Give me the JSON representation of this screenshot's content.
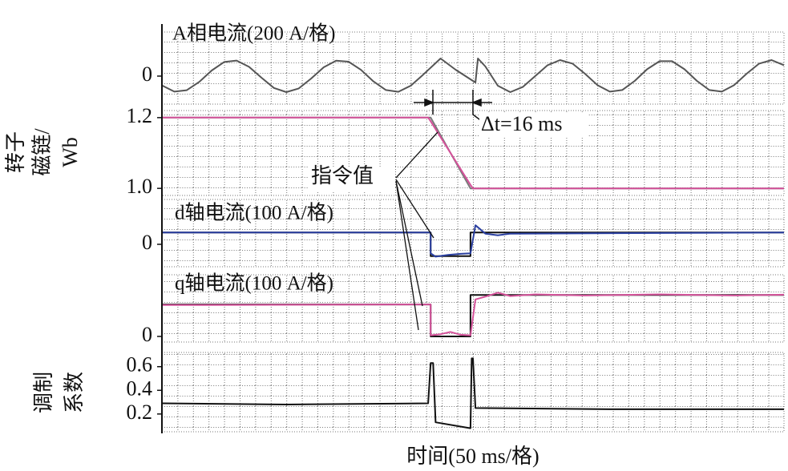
{
  "chart_data": [
    {
      "type": "line",
      "title": "A相电流(200 A/格)",
      "x": [
        0,
        5,
        10,
        15,
        20,
        25,
        30,
        35,
        40,
        45,
        50,
        55,
        60,
        65,
        70,
        75,
        80,
        85,
        90,
        95,
        100,
        105,
        112,
        118,
        126,
        127,
        130,
        135,
        140,
        145,
        150,
        155,
        160,
        165,
        170,
        175,
        180,
        185,
        190,
        195,
        200,
        205,
        210,
        215,
        220,
        225,
        230,
        235,
        240,
        245,
        250
      ],
      "series": [
        {
          "color": "#555555",
          "values": [
            -58,
            -97,
            -88,
            -36,
            35,
            88,
            97,
            58,
            -10,
            -74,
            -100,
            -77,
            -15,
            55,
            96,
            90,
            39,
            -33,
            -87,
            -98,
            -60,
            9,
            110,
            40,
            -40,
            110,
            60,
            -60,
            -100,
            -68,
            0,
            68,
            100,
            78,
            15,
            -56,
            -97,
            -87,
            -30,
            43,
            93,
            93,
            43,
            -30,
            -87,
            -97,
            -56,
            15,
            78,
            100,
            68
          ]
        }
      ],
      "xlim": [
        0,
        250
      ],
      "ylim": [
        -175,
        275
      ],
      "yticks": [
        0
      ],
      "grid": true
    },
    {
      "type": "line",
      "ylabel": [
        "转子",
        "磁链/",
        "Wb"
      ],
      "annotations": [
        "Δt=16 ms",
        "指令值"
      ],
      "x": [
        0,
        107,
        108,
        124,
        125,
        250
      ],
      "series": [
        {
          "color": "#7a7a7a",
          "values": [
            1.2,
            1.2,
            1.2,
            1.0,
            1.0,
            1.0
          ]
        },
        {
          "color": "#d4529a",
          "values": [
            1.2,
            1.2,
            1.19,
            1.01,
            1.0,
            1.0
          ]
        }
      ],
      "xlim": [
        0,
        250
      ],
      "ylim": [
        0.98,
        1.22
      ],
      "yticks": [
        {
          "value": 1.2,
          "label": "1.2"
        },
        {
          "value": 1,
          "label": "1.0"
        }
      ],
      "grid": true
    },
    {
      "type": "line",
      "title": "d轴电流(100 A/格)",
      "x": [
        0,
        108,
        108,
        110,
        115,
        120,
        124,
        124,
        126,
        130,
        135,
        140,
        250
      ],
      "series": [
        {
          "color": "#111111",
          "values": [
            105,
            105,
            -105,
            -105,
            -105,
            -105,
            -105,
            105,
            105,
            105,
            105,
            105,
            105
          ]
        },
        {
          "color": "#2a3fa0",
          "values": [
            105,
            105,
            -80,
            -110,
            -95,
            -85,
            -80,
            -80,
            170,
            95,
            80,
            95,
            105
          ]
        }
      ],
      "xlim": [
        0,
        250
      ],
      "ylim": [
        -200,
        400
      ],
      "yticks": [
        0
      ],
      "grid": true
    },
    {
      "type": "line",
      "title": "q轴电流(100 A/格)",
      "x": [
        0,
        108,
        108,
        112,
        116,
        120,
        124,
        124,
        126,
        130,
        135,
        140,
        150,
        170,
        200,
        230,
        250
      ],
      "series": [
        {
          "color": "#111111",
          "values": [
            285,
            285,
            0,
            0,
            0,
            0,
            0,
            370,
            370,
            370,
            370,
            370,
            370,
            370,
            370,
            370,
            370
          ]
        },
        {
          "color": "#d4529a",
          "values": [
            280,
            285,
            10,
            20,
            40,
            15,
            10,
            10,
            330,
            355,
            390,
            360,
            375,
            365,
            375,
            365,
            372
          ]
        }
      ],
      "xlim": [
        0,
        250
      ],
      "ylim": [
        -50,
        550
      ],
      "yticks": [
        0
      ],
      "grid": true
    },
    {
      "type": "line",
      "ylabel": [
        "调制",
        "系数"
      ],
      "xlabel": "时间(50 ms/格)",
      "x": [
        0,
        50,
        107,
        108,
        109,
        110,
        124,
        124.5,
        125,
        126,
        180,
        250
      ],
      "series": [
        {
          "color": "#111111",
          "values": [
            0.29,
            0.28,
            0.29,
            0.63,
            0.63,
            0.13,
            0.08,
            0.67,
            0.67,
            0.25,
            0.24,
            0.24
          ]
        }
      ],
      "xlim": [
        0,
        250
      ],
      "ylim": [
        0.05,
        0.72
      ],
      "yticks": [
        0.6,
        0.4,
        0.2
      ],
      "grid": true
    }
  ]
}
